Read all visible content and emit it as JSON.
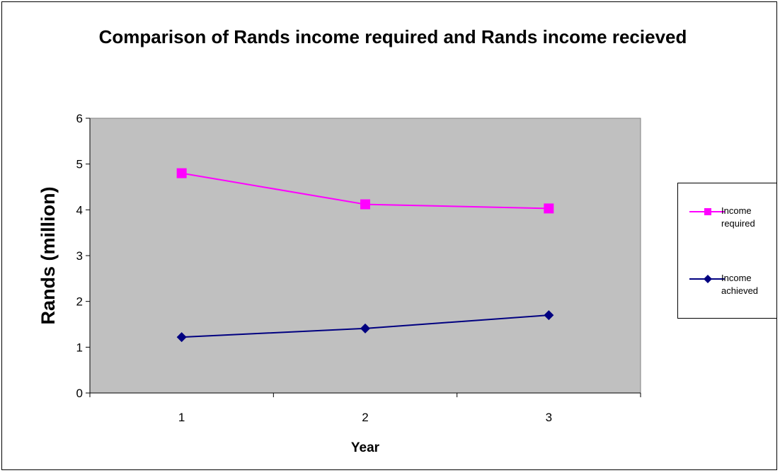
{
  "chart_data": {
    "type": "line",
    "title": "Comparison of Rands income required and Rands income recieved",
    "xlabel": "Year",
    "ylabel": "Rands (million)",
    "categories": [
      "1",
      "2",
      "3"
    ],
    "ylim": [
      0,
      6
    ],
    "yticks": [
      "0",
      "1",
      "2",
      "3",
      "4",
      "5",
      "6"
    ],
    "grid": false,
    "legend_position": "right",
    "plot_background": "#c0c0c0",
    "series": [
      {
        "name": "Income required",
        "legend_lines": [
          "Income",
          "required"
        ],
        "values": [
          4.8,
          4.12,
          4.03
        ],
        "color": "#ff00ff",
        "marker": "square"
      },
      {
        "name": "Income achieved",
        "legend_lines": [
          "Income",
          "achieved"
        ],
        "values": [
          1.22,
          1.41,
          1.7
        ],
        "color": "#000080",
        "marker": "diamond"
      }
    ]
  }
}
